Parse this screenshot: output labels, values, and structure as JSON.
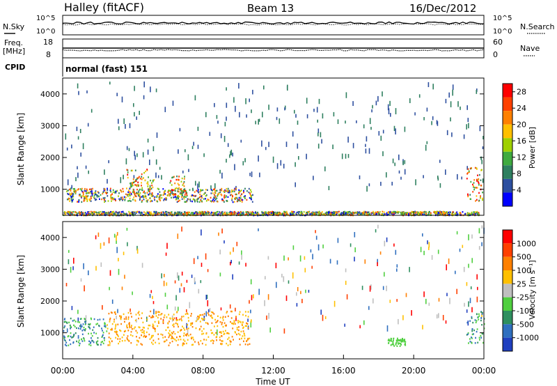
{
  "header": {
    "station": "Halley (fitACF)",
    "beam": "Beam 13",
    "date": "16/Dec/2012"
  },
  "strip_labels": {
    "nsky": "N.Sky",
    "nsearch": "N.Search",
    "freq": "Freq.",
    "freq_unit": "[MHz]",
    "nave": "Nave",
    "cpid": "CPID",
    "noise_ticks": [
      "10^5",
      "10^0"
    ],
    "freq_ticks": [
      "18",
      "8"
    ],
    "nave_ticks": [
      "60",
      "0"
    ],
    "mode": "normal (fast) 151"
  },
  "colors": {
    "power": [
      "#0000ff",
      "#2d4f9f",
      "#2e7f5f",
      "#3faa3f",
      "#9fd000",
      "#ffc000",
      "#ff8000",
      "#ff4000",
      "#ff0000"
    ],
    "velocity": [
      "#1f3fbf",
      "#2f6fbf",
      "#2e8f5f",
      "#4fcf3f",
      "#bfbfbf",
      "#ffc000",
      "#ff8000",
      "#ff4000",
      "#ff0000"
    ]
  },
  "chart_data": [
    {
      "type": "heatmap",
      "title": "",
      "xlabel": "",
      "ylabel": "Slant Range [km]",
      "x_ticks": [
        "00:00",
        "04:00",
        "08:00",
        "12:00",
        "16:00",
        "20:00",
        "00:00"
      ],
      "xlim_hours": [
        0,
        24
      ],
      "ylim": [
        180,
        4500
      ],
      "y_ticks": [
        1000,
        2000,
        3000,
        4000
      ],
      "colorbar_label": "Power [dB]",
      "colorbar_ticks": [
        4,
        8,
        12,
        16,
        20,
        24,
        28
      ],
      "colorbar_range": [
        0,
        30
      ],
      "features": [
        {
          "x_start": 0.0,
          "x_end": 23.7,
          "range_start": 200,
          "range_end": 320,
          "level": "low-mixed"
        },
        {
          "x_start": 0.2,
          "x_end": 10.8,
          "range_start": 620,
          "range_end": 1050,
          "level": "mixed"
        },
        {
          "x_start": 3.6,
          "x_end": 5.2,
          "range_start": 750,
          "range_end": 1650,
          "level": "high"
        },
        {
          "x_start": 6.0,
          "x_end": 7.0,
          "range_start": 750,
          "range_end": 1450,
          "level": "high"
        },
        {
          "x_start": 23.0,
          "x_end": 24.0,
          "range_start": 650,
          "range_end": 1700,
          "level": "high"
        }
      ]
    },
    {
      "type": "heatmap",
      "title": "",
      "xlabel": "Time UT",
      "ylabel": "Slant Range [km]",
      "x_ticks": [
        "00:00",
        "04:00",
        "08:00",
        "12:00",
        "16:00",
        "20:00",
        "00:00"
      ],
      "xlim_hours": [
        0,
        24
      ],
      "ylim": [
        180,
        4500
      ],
      "y_ticks": [
        1000,
        2000,
        3000,
        4000
      ],
      "colorbar_label": "Velocity [m s⁻¹]",
      "colorbar_ticks": [
        "1000",
        "500",
        "100",
        "25",
        "-25",
        "-100",
        "-500",
        "-1000"
      ],
      "colorbar_range": [
        -1200,
        1200
      ],
      "features": [
        {
          "x_start": 0.0,
          "x_end": 2.5,
          "range_start": 620,
          "range_end": 1500,
          "level": "toward"
        },
        {
          "x_start": 2.5,
          "x_end": 10.8,
          "range_start": 620,
          "range_end": 1700,
          "level": "away"
        },
        {
          "x_start": 18.5,
          "x_end": 19.5,
          "range_start": 600,
          "range_end": 850,
          "level": "slow"
        },
        {
          "x_start": 23.0,
          "x_end": 24.0,
          "range_start": 650,
          "range_end": 1700,
          "level": "toward"
        }
      ]
    }
  ]
}
